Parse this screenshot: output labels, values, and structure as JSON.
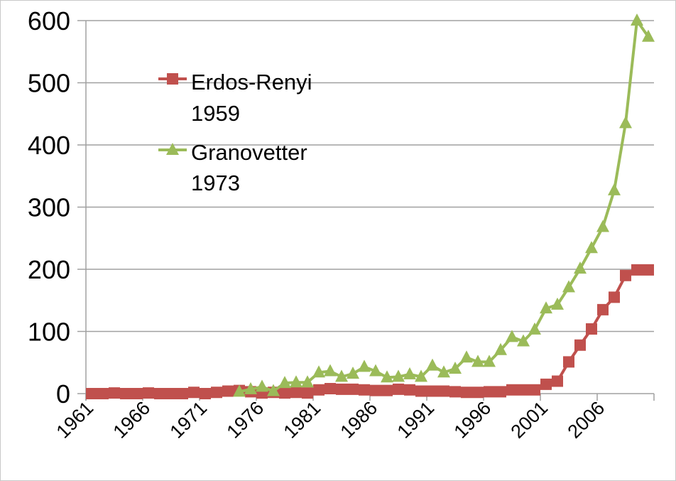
{
  "chart_data": {
    "type": "line",
    "title": "",
    "xlabel": "",
    "ylabel": "",
    "ylim": [
      0,
      600
    ],
    "yticks": [
      0,
      100,
      200,
      300,
      400,
      500,
      600
    ],
    "grid": "horizontal",
    "legend_position": "top-left",
    "x": [
      1961,
      1962,
      1963,
      1964,
      1965,
      1966,
      1967,
      1968,
      1969,
      1970,
      1971,
      1972,
      1973,
      1974,
      1975,
      1976,
      1977,
      1978,
      1979,
      1980,
      1981,
      1982,
      1983,
      1984,
      1985,
      1986,
      1987,
      1988,
      1989,
      1990,
      1991,
      1992,
      1993,
      1994,
      1995,
      1996,
      1997,
      1998,
      1999,
      2000,
      2001,
      2002,
      2003,
      2004,
      2005,
      2006,
      2007,
      2008,
      2009,
      2010
    ],
    "xtick_labels": [
      "1961",
      "1966",
      "1971",
      "1976",
      "1981",
      "1986",
      "1991",
      "1996",
      "2001",
      "2006"
    ],
    "series": [
      {
        "name": "Erdos-Renyi 1959",
        "name_lines": [
          "Erdos-Renyi",
          "1959"
        ],
        "color": "#c0504d",
        "marker": "square",
        "values": [
          0,
          0,
          1,
          0,
          0,
          1,
          0,
          0,
          0,
          2,
          0,
          2,
          4,
          5,
          3,
          1,
          2,
          1,
          2,
          1,
          6,
          8,
          7,
          7,
          6,
          5,
          5,
          7,
          6,
          4,
          4,
          4,
          3,
          2,
          2,
          3,
          3,
          6,
          6,
          6,
          15,
          20,
          51,
          78,
          104,
          135,
          155,
          190,
          199,
          199
        ]
      },
      {
        "name": "Granovetter 1973",
        "name_lines": [
          "Granovetter",
          "1973"
        ],
        "color": "#9bbb59",
        "marker": "triangle",
        "values": [
          null,
          null,
          null,
          null,
          null,
          null,
          null,
          null,
          null,
          null,
          null,
          null,
          null,
          3,
          7,
          11,
          4,
          17,
          18,
          18,
          34,
          36,
          27,
          32,
          43,
          36,
          26,
          27,
          31,
          27,
          45,
          34,
          40,
          58,
          51,
          51,
          70,
          91,
          84,
          103,
          137,
          143,
          171,
          201,
          234,
          268,
          327,
          435,
          600,
          574
        ]
      }
    ]
  }
}
